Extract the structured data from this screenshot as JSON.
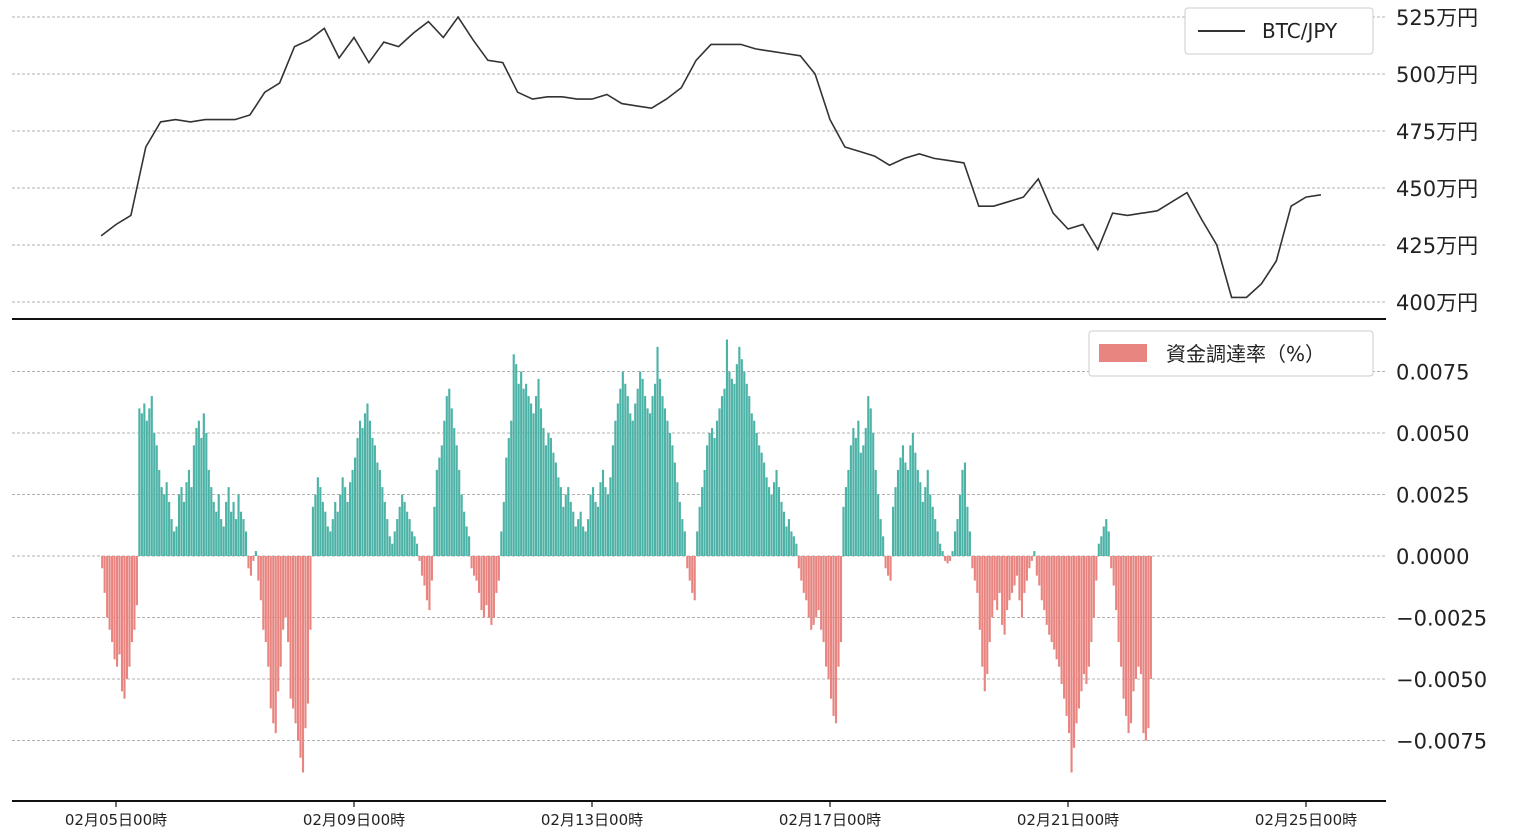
{
  "chart_data": [
    {
      "type": "line",
      "series": [
        {
          "name": "BTC/JPY",
          "color": "#333333",
          "x": [
            "02/04 18:00",
            "02/05 00:00",
            "02/05 06:00",
            "02/05 12:00",
            "02/05 18:00",
            "02/06 00:00",
            "02/06 06:00",
            "02/06 12:00",
            "02/06 18:00",
            "02/07 00:00",
            "02/07 06:00",
            "02/07 12:00",
            "02/07 18:00",
            "02/08 00:00",
            "02/08 06:00",
            "02/08 12:00",
            "02/08 18:00",
            "02/09 00:00",
            "02/09 06:00",
            "02/09 12:00",
            "02/09 18:00",
            "02/10 00:00",
            "02/10 06:00",
            "02/10 12:00",
            "02/10 18:00",
            "02/11 00:00",
            "02/11 06:00",
            "02/11 12:00",
            "02/11 18:00",
            "02/12 00:00",
            "02/12 06:00",
            "02/12 12:00",
            "02/12 18:00",
            "02/13 00:00",
            "02/13 06:00",
            "02/13 12:00",
            "02/13 18:00",
            "02/14 00:00",
            "02/14 06:00",
            "02/14 12:00",
            "02/14 18:00",
            "02/15 00:00",
            "02/15 06:00",
            "02/15 12:00",
            "02/15 18:00",
            "02/16 00:00",
            "02/16 06:00",
            "02/16 12:00",
            "02/16 18:00",
            "02/17 00:00",
            "02/17 06:00",
            "02/17 12:00",
            "02/17 18:00",
            "02/18 00:00",
            "02/18 06:00",
            "02/18 12:00",
            "02/18 18:00",
            "02/19 00:00",
            "02/19 06:00",
            "02/19 12:00",
            "02/19 18:00",
            "02/20 00:00",
            "02/20 06:00",
            "02/20 12:00",
            "02/20 18:00",
            "02/21 00:00",
            "02/21 06:00",
            "02/21 12:00",
            "02/21 18:00",
            "02/22 00:00",
            "02/22 06:00",
            "02/22 12:00",
            "02/22 18:00",
            "02/23 00:00",
            "02/23 06:00",
            "02/23 12:00",
            "02/23 18:00",
            "02/24 00:00",
            "02/24 06:00",
            "02/24 12:00",
            "02/24 18:00",
            "02/25 00:00",
            "02/25 06:00"
          ],
          "values": [
            4290000,
            4340000,
            4380000,
            4680000,
            4790000,
            4800000,
            4790000,
            4800000,
            4800000,
            4800000,
            4820000,
            4920000,
            4960000,
            5120000,
            5150000,
            5200000,
            5070000,
            5160000,
            5050000,
            5140000,
            5120000,
            5180000,
            5230000,
            5160000,
            5250000,
            5150000,
            5060000,
            5050000,
            4920000,
            4890000,
            4900000,
            4900000,
            4890000,
            4890000,
            4910000,
            4870000,
            4860000,
            4850000,
            4890000,
            4940000,
            5060000,
            5130000,
            5130000,
            5130000,
            5110000,
            5100000,
            5090000,
            5080000,
            5000000,
            4800000,
            4680000,
            4660000,
            4640000,
            4600000,
            4630000,
            4650000,
            4630000,
            4620000,
            4610000,
            4420000,
            4420000,
            4440000,
            4460000,
            4540000,
            4390000,
            4320000,
            4340000,
            4230000,
            4390000,
            4380000,
            4390000,
            4400000,
            4440000,
            4480000,
            4360000,
            4250000,
            4020000,
            4020000,
            4080000,
            4180000,
            4420000,
            4460000,
            4470000
          ]
        }
      ],
      "ylim": [
        3950000,
        5280000
      ],
      "y_ticks": [
        4000000,
        4250000,
        4500000,
        4750000,
        5000000,
        5250000
      ],
      "y_tick_labels": [
        "400万円",
        "425万円",
        "450万円",
        "475万円",
        "500万円",
        "525万円"
      ],
      "grid": true,
      "legend": "top-right"
    },
    {
      "type": "bar",
      "series": [
        {
          "name": "資金調達率（%）",
          "color_positive": "#4db3a7",
          "color_negative": "#e98580",
          "x_start": "02/04 18:00",
          "interval_hours": 1,
          "values": [
            -0.0005,
            -0.0015,
            -0.0025,
            -0.003,
            -0.0035,
            -0.0042,
            -0.0045,
            -0.004,
            -0.0055,
            -0.0058,
            -0.005,
            -0.0045,
            -0.0035,
            -0.003,
            -0.002,
            0.006,
            0.0058,
            0.0062,
            0.0055,
            0.006,
            0.0065,
            0.005,
            0.0045,
            0.0035,
            0.0028,
            0.0025,
            0.003,
            0.0022,
            0.0015,
            0.001,
            0.0012,
            0.0025,
            0.0028,
            0.0022,
            0.003,
            0.0035,
            0.0028,
            0.0045,
            0.0052,
            0.0055,
            0.0048,
            0.0058,
            0.005,
            0.0035,
            0.0028,
            0.0022,
            0.0018,
            0.0025,
            0.0015,
            0.0012,
            0.0022,
            0.0028,
            0.0018,
            0.0022,
            0.0015,
            0.0025,
            0.0018,
            0.0015,
            0.001,
            -0.0005,
            -0.0008,
            -0.0002,
            0.0002,
            -0.001,
            -0.0018,
            -0.003,
            -0.0035,
            -0.0045,
            -0.0062,
            -0.0068,
            -0.0072,
            -0.0055,
            -0.0045,
            -0.003,
            -0.0025,
            -0.0035,
            -0.0058,
            -0.0062,
            -0.0068,
            -0.0075,
            -0.0082,
            -0.0088,
            -0.007,
            -0.006,
            -0.003,
            0.002,
            0.0025,
            0.0032,
            0.0028,
            0.0022,
            0.0018,
            0.0012,
            0.001,
            0.0015,
            0.0022,
            0.0018,
            0.0025,
            0.0032,
            0.0028,
            0.0022,
            0.003,
            0.0035,
            0.004,
            0.0048,
            0.0055,
            0.0052,
            0.0058,
            0.0062,
            0.0055,
            0.0048,
            0.0045,
            0.0038,
            0.0035,
            0.0028,
            0.0022,
            0.0015,
            0.0008,
            0.0005,
            0.001,
            0.0015,
            0.002,
            0.0025,
            0.0022,
            0.0018,
            0.0015,
            0.001,
            0.0008,
            0.0005,
            -0.0002,
            -0.0008,
            -0.0012,
            -0.0018,
            -0.0022,
            -0.001,
            0.002,
            0.0035,
            0.004,
            0.0045,
            0.0055,
            0.0065,
            0.0068,
            0.006,
            0.0052,
            0.0045,
            0.0035,
            0.0025,
            0.0018,
            0.0012,
            0.0008,
            -0.0005,
            -0.0008,
            -0.001,
            -0.0015,
            -0.0022,
            -0.0025,
            -0.002,
            -0.0025,
            -0.0028,
            -0.0025,
            -0.0015,
            -0.001,
            0.001,
            0.0022,
            0.004,
            0.0048,
            0.0055,
            0.0082,
            0.0078,
            0.007,
            0.0075,
            0.0068,
            0.007,
            0.0065,
            0.0062,
            0.0058,
            0.0065,
            0.0072,
            0.006,
            0.0052,
            0.0045,
            0.005,
            0.0048,
            0.0042,
            0.0038,
            0.0032,
            0.0028,
            0.002,
            0.0025,
            0.0028,
            0.0022,
            0.0018,
            0.0012,
            0.0015,
            0.0018,
            0.0012,
            0.001,
            0.0015,
            0.0025,
            0.0028,
            0.0022,
            0.002,
            0.003,
            0.0035,
            0.0028,
            0.0025,
            0.0032,
            0.0045,
            0.0055,
            0.0062,
            0.0068,
            0.0075,
            0.007,
            0.0065,
            0.0058,
            0.0055,
            0.0062,
            0.0068,
            0.0075,
            0.0072,
            0.0065,
            0.006,
            0.0058,
            0.0065,
            0.007,
            0.0085,
            0.0072,
            0.0065,
            0.006,
            0.0055,
            0.005,
            0.0045,
            0.0038,
            0.003,
            0.0022,
            0.0015,
            0.001,
            -0.0005,
            -0.001,
            -0.0015,
            -0.0018,
            0.001,
            0.002,
            0.0028,
            0.0035,
            0.0045,
            0.005,
            0.0052,
            0.0048,
            0.0055,
            0.006,
            0.0065,
            0.0068,
            0.0088,
            0.0075,
            0.0072,
            0.007,
            0.0078,
            0.0085,
            0.008,
            0.0075,
            0.007,
            0.0065,
            0.0058,
            0.0055,
            0.005,
            0.0045,
            0.0042,
            0.0038,
            0.0032,
            0.0028,
            0.0025,
            0.003,
            0.0035,
            0.0028,
            0.0022,
            0.0018,
            0.0012,
            0.0015,
            0.001,
            0.0008,
            0.0005,
            -0.0005,
            -0.001,
            -0.0015,
            -0.0018,
            -0.0025,
            -0.003,
            -0.0028,
            -0.0025,
            -0.0022,
            -0.003,
            -0.0035,
            -0.0045,
            -0.005,
            -0.0058,
            -0.0065,
            -0.0068,
            -0.0045,
            -0.0035,
            0.002,
            0.0028,
            0.0035,
            0.0045,
            0.0052,
            0.0048,
            0.0055,
            0.0042,
            0.0045,
            0.0052,
            0.0065,
            0.006,
            0.005,
            0.0035,
            0.0025,
            0.0015,
            0.0008,
            -0.0005,
            -0.0008,
            -0.001,
            0.002,
            0.0028,
            0.0035,
            0.004,
            0.0045,
            0.0038,
            0.0035,
            0.0045,
            0.005,
            0.0042,
            0.0035,
            0.003,
            0.0022,
            0.0028,
            0.0035,
            0.0025,
            0.002,
            0.0015,
            0.001,
            0.0005,
            0.0002,
            -0.0002,
            -0.0003,
            -0.0002,
            0.0002,
            0.001,
            0.0015,
            0.0025,
            0.0035,
            0.0038,
            0.002,
            0.001,
            -0.0005,
            -0.001,
            -0.0015,
            -0.003,
            -0.0045,
            -0.0055,
            -0.0048,
            -0.0035,
            -0.0025,
            -0.0018,
            -0.0022,
            -0.0015,
            -0.0028,
            -0.0032,
            -0.0022,
            -0.0018,
            -0.0015,
            -0.0012,
            -0.0008,
            -0.0018,
            -0.0025,
            -0.0015,
            -0.001,
            -0.0005,
            -0.0002,
            0.0002,
            -0.0008,
            -0.0012,
            -0.0018,
            -0.0022,
            -0.0028,
            -0.0032,
            -0.0035,
            -0.0038,
            -0.0042,
            -0.0045,
            -0.0052,
            -0.0058,
            -0.0065,
            -0.0072,
            -0.0088,
            -0.0078,
            -0.0068,
            -0.0062,
            -0.0055,
            -0.0048,
            -0.0052,
            -0.0045,
            -0.0035,
            -0.0025,
            -0.001,
            0.0005,
            0.0008,
            0.0012,
            0.0015,
            0.001,
            -0.0005,
            -0.0012,
            -0.0022,
            -0.0035,
            -0.0045,
            -0.0058,
            -0.0065,
            -0.0072,
            -0.0068,
            -0.0055,
            -0.005,
            -0.0045,
            -0.0048,
            -0.0072,
            -0.0075,
            -0.007,
            -0.005
          ]
        }
      ],
      "ylim": [
        -0.0097,
        0.0094
      ],
      "y_ticks": [
        -0.0075,
        -0.005,
        -0.0025,
        0.0,
        0.0025,
        0.005,
        0.0075
      ],
      "y_tick_labels": [
        "−0.0075",
        "−0.0050",
        "−0.0025",
        "0.0000",
        "0.0025",
        "0.0050",
        "0.0075"
      ],
      "grid": true,
      "legend": "top-right"
    }
  ],
  "x_axis": {
    "tick_labels": [
      "02月05日00時",
      "02月09日00時",
      "02月13日00時",
      "02月17日00時",
      "02月21日00時",
      "02月25日00時"
    ],
    "tick_dates": [
      "02/05 00:00",
      "02/09 00:00",
      "02/13 00:00",
      "02/17 00:00",
      "02/21 00:00",
      "02/25 00:00"
    ]
  }
}
